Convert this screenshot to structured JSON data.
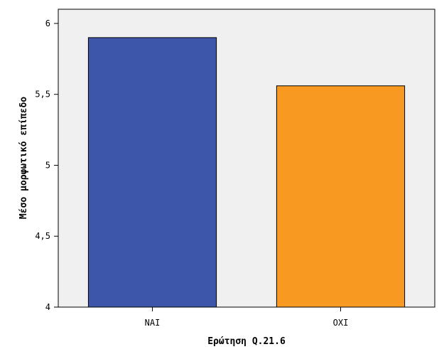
{
  "chart_data": {
    "type": "bar",
    "categories": [
      "ΝΑΙ",
      "ΟΧΙ"
    ],
    "values": [
      5.9,
      5.56
    ],
    "bar_colors": [
      "#3d56a9",
      "#f89a21"
    ],
    "xlabel": "Ερώτηση Q.21.6",
    "ylabel": "Μέσο μορφωτικό επίπεδο",
    "ylim": [
      4,
      6.1
    ],
    "yticks": [
      4,
      4.5,
      5,
      5.5,
      6
    ],
    "ytick_labels": [
      "4",
      "4,5",
      "5",
      "5,5",
      "6"
    ],
    "grid": false,
    "plot_background": "#f0f0f0"
  }
}
